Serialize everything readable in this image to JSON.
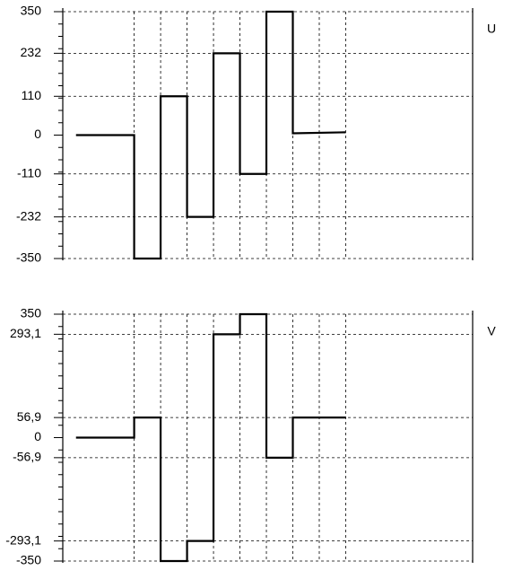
{
  "chart_data": [
    {
      "type": "line",
      "series": [
        {
          "name": "U",
          "color": "#000000",
          "x": [
            -1.2,
            1,
            1,
            2,
            2,
            3,
            3,
            4,
            4,
            5,
            5,
            6,
            6,
            7,
            7,
            9
          ],
          "values": [
            0,
            0,
            -350,
            -350,
            110,
            110,
            -232,
            -232,
            232,
            232,
            -110,
            -110,
            350,
            350,
            5,
            8
          ]
        }
      ],
      "xlim": [
        -1.7,
        13.8
      ],
      "xticks": [
        1,
        2,
        3,
        4,
        5,
        6,
        7,
        8,
        9
      ],
      "ylim": [
        -350,
        350
      ],
      "yticks": [
        350,
        232,
        110,
        0,
        -110,
        -232,
        -350
      ],
      "ygrid": [
        350,
        232,
        110,
        -110,
        -232,
        -350
      ],
      "grid": true
    },
    {
      "type": "line",
      "series": [
        {
          "name": "V",
          "color": "#000000",
          "x": [
            -1.2,
            1,
            1,
            2,
            2,
            3,
            3,
            4,
            4,
            5,
            5,
            6,
            6,
            7,
            7,
            9
          ],
          "values": [
            0,
            0,
            56.9,
            56.9,
            -350,
            -350,
            -293.1,
            -293.1,
            293.1,
            293.1,
            350,
            350,
            -56.9,
            -56.9,
            56.9,
            56.9
          ]
        }
      ],
      "xlim": [
        -1.7,
        13.8
      ],
      "xticks": [
        1,
        2,
        3,
        4,
        5,
        6,
        7,
        8,
        9
      ],
      "ylim": [
        -350,
        350
      ],
      "yticks": [
        350,
        {
          "value": 293.1,
          "label": "293,1"
        },
        {
          "value": 56.9,
          "label": "56,9"
        },
        0,
        {
          "value": -56.9,
          "label": "-56,9"
        },
        {
          "value": -293.1,
          "label": "-293,1"
        },
        -350
      ],
      "ygrid": [
        350,
        293.1,
        56.9,
        -56.9,
        -293.1,
        -350
      ],
      "grid": true
    }
  ]
}
